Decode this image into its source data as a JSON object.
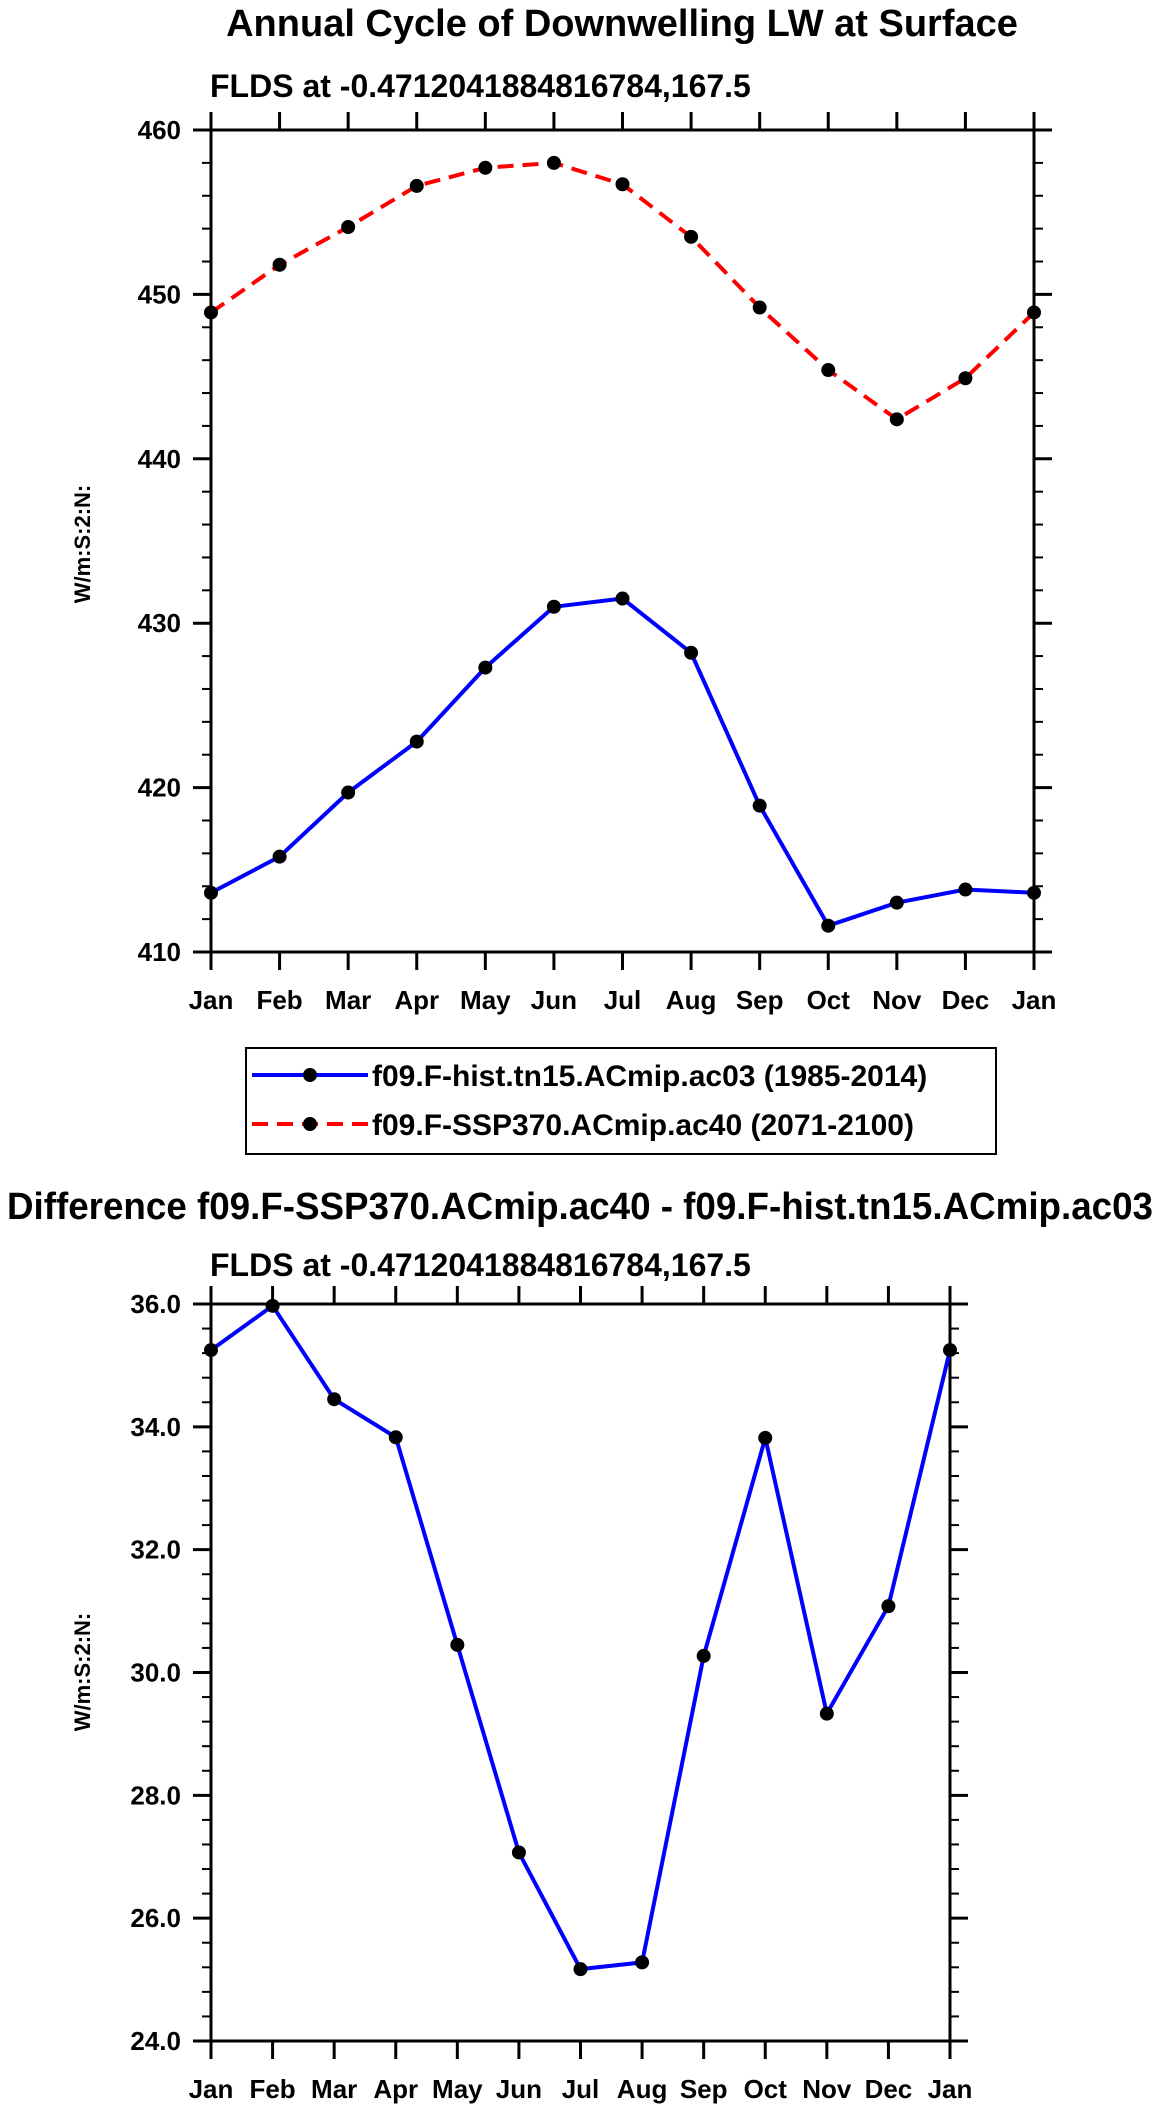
{
  "chart_data": [
    {
      "type": "line",
      "title": "Annual Cycle of Downwelling LW at Surface",
      "subtitle": "FLDS at -0.4712041884816784,167.5",
      "ylabel": "W/m:S:2:N:",
      "xlabel": "",
      "categories": [
        "Jan",
        "Feb",
        "Mar",
        "Apr",
        "May",
        "Jun",
        "Jul",
        "Aug",
        "Sep",
        "Oct",
        "Nov",
        "Dec",
        "Jan"
      ],
      "ylim": [
        410,
        460
      ],
      "yticks": [
        "410",
        "420",
        "430",
        "440",
        "450",
        "460"
      ],
      "legend": {
        "position": "bottom",
        "entries": [
          "f09.F-hist.tn15.ACmip.ac03 (1985-2014)",
          "f09.F-SSP370.ACmip.ac40 (2071-2100)"
        ]
      },
      "series": [
        {
          "name": "f09.F-hist.tn15.ACmip.ac03 (1985-2014)",
          "color": "#0000ff",
          "dash": "solid",
          "values": [
            413.6,
            415.8,
            419.7,
            422.8,
            427.3,
            431.0,
            431.5,
            428.2,
            418.9,
            411.6,
            413.0,
            413.8,
            413.6
          ]
        },
        {
          "name": "f09.F-SSP370.ACmip.ac40 (2071-2100)",
          "color": "#ff0000",
          "dash": "dashed",
          "values": [
            448.9,
            451.8,
            454.1,
            456.6,
            457.7,
            458.0,
            456.7,
            453.5,
            449.2,
            445.4,
            442.4,
            444.9,
            448.9
          ]
        }
      ]
    },
    {
      "type": "line",
      "title": "Difference f09.F-SSP370.ACmip.ac40 - f09.F-hist.tn15.ACmip.ac03",
      "subtitle": "FLDS at -0.4712041884816784,167.5",
      "ylabel": "W/m:S:2:N:",
      "xlabel": "",
      "categories": [
        "Jan",
        "Feb",
        "Mar",
        "Apr",
        "May",
        "Jun",
        "Jul",
        "Aug",
        "Sep",
        "Oct",
        "Nov",
        "Dec",
        "Jan"
      ],
      "ylim": [
        24.0,
        36.0
      ],
      "yticks": [
        "24.0",
        "26.0",
        "28.0",
        "30.0",
        "32.0",
        "34.0",
        "36.0"
      ],
      "series": [
        {
          "name": "Difference",
          "color": "#0000ff",
          "dash": "solid",
          "values": [
            35.25,
            35.97,
            34.45,
            33.83,
            30.45,
            27.07,
            25.17,
            25.28,
            30.27,
            33.82,
            29.33,
            31.08,
            35.25
          ]
        }
      ]
    }
  ]
}
